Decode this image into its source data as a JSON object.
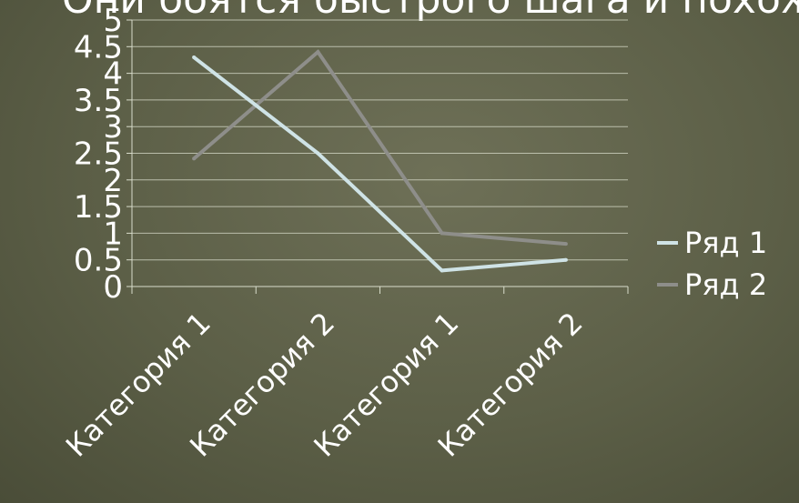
{
  "slide": {
    "title": "Они боятся быстрого шага и похож"
  },
  "chart_data": {
    "type": "line",
    "categories": [
      "Категория 1",
      "Категория 2",
      "Категория 1",
      "Категория 2"
    ],
    "series": [
      {
        "name": "Ряд 1",
        "values": [
          4.3,
          2.5,
          0.3,
          0.5
        ],
        "color": "#cfe3e6"
      },
      {
        "name": "Ряд 2",
        "values": [
          2.4,
          4.4,
          1.0,
          0.8
        ],
        "color": "#8e8e8a"
      }
    ],
    "ylim": [
      0,
      5
    ],
    "yticks": [
      "0",
      "0.5",
      "1",
      "1.5",
      "2",
      "2.5",
      "3",
      "3.5",
      "4",
      "4.5",
      "5"
    ],
    "grid": true,
    "legend_position": "right"
  }
}
